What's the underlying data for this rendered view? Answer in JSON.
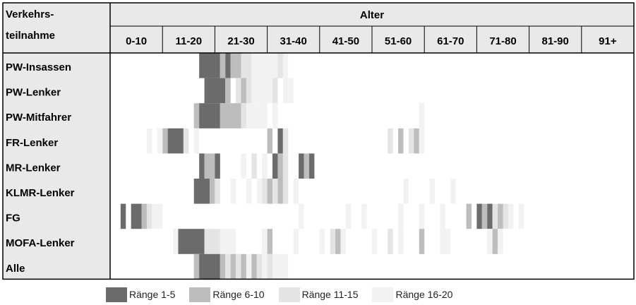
{
  "chart_data": {
    "type": "heatmap",
    "header_left_line1": "Verkehrs-",
    "header_left_line2": "teilnahme",
    "header_group": "Alter",
    "age_groups": [
      "0-10",
      "11-20",
      "21-30",
      "31-40",
      "41-50",
      "51-60",
      "61-70",
      "71-80",
      "81-90",
      "91+"
    ],
    "age_range": [
      0,
      100
    ],
    "rows": [
      {
        "label": "PW-Insassen",
        "cells": [
          [
            17,
            21,
            1
          ],
          [
            21,
            22,
            2
          ],
          [
            22,
            23,
            1
          ],
          [
            23,
            24,
            2
          ],
          [
            24,
            25,
            2
          ],
          [
            25,
            26,
            3
          ],
          [
            26,
            27,
            3
          ],
          [
            27,
            28,
            4
          ],
          [
            28,
            32,
            4
          ],
          [
            32,
            33,
            3
          ],
          [
            33,
            34,
            4
          ]
        ]
      },
      {
        "label": "PW-Lenker",
        "cells": [
          [
            18,
            22,
            1
          ],
          [
            22,
            23,
            2
          ],
          [
            24,
            25,
            3
          ],
          [
            25,
            26,
            2
          ],
          [
            26,
            27,
            3
          ],
          [
            27,
            28,
            4
          ],
          [
            28,
            30,
            4
          ],
          [
            30,
            31,
            4
          ],
          [
            31,
            32,
            3
          ],
          [
            33,
            34,
            4
          ],
          [
            34,
            35,
            4
          ]
        ]
      },
      {
        "label": "PW-Mitfahrer",
        "cells": [
          [
            16,
            17,
            2
          ],
          [
            17,
            21,
            1
          ],
          [
            21,
            25,
            2
          ],
          [
            25,
            26,
            3
          ],
          [
            26,
            27,
            4
          ],
          [
            27,
            28,
            4
          ],
          [
            28,
            30,
            4
          ],
          [
            31,
            32,
            4
          ],
          [
            59,
            60,
            4
          ]
        ]
      },
      {
        "label": "FR-Lenker",
        "cells": [
          [
            7,
            8,
            4
          ],
          [
            9,
            10,
            4
          ],
          [
            10,
            11,
            2
          ],
          [
            11,
            14,
            1
          ],
          [
            14,
            15,
            3
          ],
          [
            16,
            17,
            4
          ],
          [
            30,
            31,
            2
          ],
          [
            32,
            33,
            1
          ],
          [
            33,
            34,
            3
          ],
          [
            53,
            54,
            3
          ],
          [
            55,
            56,
            2
          ],
          [
            57,
            58,
            3
          ],
          [
            58,
            59,
            2
          ],
          [
            59,
            60,
            4
          ]
        ]
      },
      {
        "label": "MR-Lenker",
        "cells": [
          [
            17,
            18,
            1
          ],
          [
            18,
            20,
            2
          ],
          [
            20,
            21,
            1
          ],
          [
            25,
            26,
            4
          ],
          [
            27,
            28,
            3
          ],
          [
            29,
            30,
            4
          ],
          [
            31,
            32,
            1
          ],
          [
            32,
            33,
            2
          ],
          [
            33,
            34,
            3
          ],
          [
            36,
            37,
            1
          ],
          [
            37,
            38,
            2
          ],
          [
            38,
            39,
            1
          ]
        ]
      },
      {
        "label": "KLMR-Lenker",
        "cells": [
          [
            16,
            19,
            1
          ],
          [
            19,
            20,
            2
          ],
          [
            20,
            21,
            3
          ],
          [
            23,
            24,
            4
          ],
          [
            26,
            27,
            4
          ],
          [
            28,
            29,
            4
          ],
          [
            29,
            30,
            3
          ],
          [
            30,
            31,
            2
          ],
          [
            31,
            32,
            3
          ],
          [
            32,
            33,
            2
          ],
          [
            33,
            34,
            3
          ],
          [
            35,
            36,
            4
          ],
          [
            56,
            57,
            4
          ],
          [
            61,
            62,
            4
          ],
          [
            65,
            66,
            4
          ]
        ]
      },
      {
        "label": "FG",
        "cells": [
          [
            2,
            3,
            1
          ],
          [
            4,
            6,
            1
          ],
          [
            6,
            7,
            2
          ],
          [
            7,
            8,
            3
          ],
          [
            8,
            10,
            4
          ],
          [
            36,
            37,
            4
          ],
          [
            45,
            46,
            4
          ],
          [
            48,
            49,
            4
          ],
          [
            55,
            56,
            4
          ],
          [
            59,
            60,
            4
          ],
          [
            63,
            64,
            4
          ],
          [
            68,
            69,
            2
          ],
          [
            70,
            71,
            1
          ],
          [
            71,
            72,
            2
          ],
          [
            72,
            73,
            1
          ],
          [
            73,
            74,
            3
          ],
          [
            74,
            75,
            2
          ],
          [
            75,
            76,
            3
          ],
          [
            76,
            77,
            4
          ],
          [
            78,
            79,
            4
          ]
        ]
      },
      {
        "label": "MOFA-Lenker",
        "cells": [
          [
            12,
            13,
            4
          ],
          [
            13,
            18,
            1
          ],
          [
            18,
            21,
            3
          ],
          [
            21,
            24,
            4
          ],
          [
            29,
            30,
            4
          ],
          [
            30,
            31,
            2
          ],
          [
            35,
            36,
            4
          ],
          [
            40,
            41,
            4
          ],
          [
            42,
            43,
            3
          ],
          [
            43,
            44,
            2
          ],
          [
            44,
            45,
            4
          ],
          [
            50,
            51,
            4
          ],
          [
            53,
            54,
            3
          ],
          [
            55,
            56,
            4
          ],
          [
            59,
            60,
            2
          ],
          [
            63,
            65,
            4
          ],
          [
            72,
            73,
            4
          ],
          [
            73,
            74,
            2
          ],
          [
            74,
            75,
            4
          ]
        ]
      },
      {
        "label": "Alle",
        "cells": [
          [
            16,
            17,
            2
          ],
          [
            17,
            21,
            1
          ],
          [
            21,
            22,
            2
          ],
          [
            22,
            23,
            3
          ],
          [
            23,
            24,
            2
          ],
          [
            24,
            25,
            3
          ],
          [
            25,
            26,
            2
          ],
          [
            26,
            27,
            4
          ],
          [
            27,
            28,
            2
          ],
          [
            28,
            29,
            3
          ],
          [
            29,
            30,
            4
          ],
          [
            30,
            31,
            3
          ],
          [
            31,
            33,
            4
          ],
          [
            33,
            34,
            4
          ]
        ]
      }
    ],
    "legend": [
      {
        "label": "Ränge 1-5",
        "rank": 1
      },
      {
        "label": "Ränge 6-10",
        "rank": 2
      },
      {
        "label": "Ränge 11-15",
        "rank": 3
      },
      {
        "label": "Ränge 16-20",
        "rank": 4
      }
    ],
    "colors": {
      "rank1": "#6b6b6b",
      "rank2": "#bdbdbd",
      "rank3": "#e4e4e4",
      "rank4": "#f2f2f2",
      "grid": "#000000",
      "label_bg": "#e9e9e9"
    }
  }
}
